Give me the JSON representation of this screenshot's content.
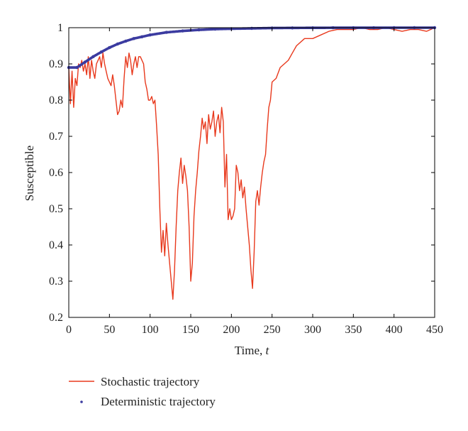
{
  "chart_data": {
    "type": "line",
    "xlabel": "Time, ",
    "xlabel_var": "t",
    "ylabel": "Susceptible",
    "xlim": [
      0,
      450
    ],
    "ylim": [
      0.2,
      1
    ],
    "xticks": [
      0,
      50,
      100,
      150,
      200,
      250,
      300,
      350,
      400,
      450
    ],
    "yticks": [
      0.2,
      0.3,
      0.4,
      0.5,
      0.6,
      0.7,
      0.8,
      0.9,
      1
    ],
    "ytick_labels": [
      "0.2",
      "0.3",
      "0.4",
      "0.5",
      "0.6",
      "0.7",
      "0.8",
      "0.9",
      "1"
    ],
    "grid": false,
    "legend_position": "below",
    "series": [
      {
        "name": "Stochastic trajectory",
        "color": "#e8391d",
        "style": "line",
        "x": [
          0,
          2,
          4,
          6,
          8,
          10,
          12,
          14,
          16,
          18,
          20,
          22,
          24,
          26,
          28,
          30,
          32,
          34,
          36,
          38,
          40,
          42,
          44,
          46,
          48,
          50,
          52,
          54,
          56,
          58,
          60,
          62,
          64,
          66,
          68,
          70,
          72,
          74,
          76,
          78,
          80,
          82,
          84,
          86,
          88,
          90,
          92,
          94,
          96,
          98,
          100,
          102,
          104,
          106,
          108,
          110,
          112,
          114,
          116,
          118,
          120,
          122,
          124,
          126,
          128,
          130,
          132,
          134,
          136,
          138,
          140,
          142,
          144,
          146,
          148,
          150,
          152,
          154,
          156,
          158,
          160,
          162,
          164,
          166,
          168,
          170,
          172,
          174,
          176,
          178,
          180,
          182,
          184,
          186,
          188,
          190,
          192,
          194,
          196,
          198,
          200,
          202,
          204,
          206,
          208,
          210,
          212,
          214,
          216,
          218,
          220,
          222,
          224,
          226,
          228,
          230,
          232,
          234,
          236,
          238,
          240,
          242,
          244,
          246,
          248,
          250,
          255,
          260,
          265,
          270,
          275,
          280,
          290,
          300,
          310,
          320,
          330,
          340,
          350,
          360,
          370,
          380,
          390,
          400,
          410,
          420,
          430,
          440,
          450
        ],
        "values": [
          0.89,
          0.79,
          0.88,
          0.78,
          0.86,
          0.84,
          0.9,
          0.89,
          0.91,
          0.88,
          0.9,
          0.87,
          0.92,
          0.86,
          0.91,
          0.88,
          0.86,
          0.9,
          0.91,
          0.92,
          0.89,
          0.93,
          0.9,
          0.88,
          0.86,
          0.85,
          0.84,
          0.87,
          0.84,
          0.8,
          0.76,
          0.77,
          0.8,
          0.78,
          0.86,
          0.92,
          0.89,
          0.93,
          0.91,
          0.87,
          0.9,
          0.92,
          0.89,
          0.92,
          0.92,
          0.91,
          0.9,
          0.85,
          0.83,
          0.8,
          0.8,
          0.81,
          0.79,
          0.8,
          0.73,
          0.65,
          0.5,
          0.38,
          0.44,
          0.37,
          0.46,
          0.4,
          0.35,
          0.3,
          0.25,
          0.33,
          0.45,
          0.55,
          0.6,
          0.64,
          0.57,
          0.62,
          0.59,
          0.55,
          0.45,
          0.3,
          0.35,
          0.48,
          0.55,
          0.6,
          0.66,
          0.7,
          0.75,
          0.72,
          0.74,
          0.68,
          0.76,
          0.72,
          0.74,
          0.77,
          0.7,
          0.74,
          0.76,
          0.71,
          0.78,
          0.74,
          0.56,
          0.65,
          0.47,
          0.5,
          0.47,
          0.48,
          0.5,
          0.62,
          0.6,
          0.55,
          0.58,
          0.53,
          0.56,
          0.5,
          0.45,
          0.4,
          0.33,
          0.28,
          0.38,
          0.52,
          0.55,
          0.51,
          0.56,
          0.6,
          0.63,
          0.65,
          0.72,
          0.78,
          0.8,
          0.85,
          0.86,
          0.89,
          0.9,
          0.91,
          0.93,
          0.95,
          0.97,
          0.97,
          0.98,
          0.99,
          0.995,
          0.995,
          0.995,
          1.0,
          0.995,
          0.995,
          1.0,
          0.995,
          0.99,
          0.995,
          0.995,
          0.99,
          1.0
        ]
      },
      {
        "name": "Deterministic trajectory",
        "color": "#3b3ba0",
        "style": "dots",
        "x": [
          0,
          10,
          20,
          30,
          40,
          50,
          60,
          70,
          80,
          90,
          100,
          120,
          140,
          160,
          180,
          200,
          225,
          250,
          275,
          300,
          325,
          350,
          375,
          400,
          425,
          450
        ],
        "values": [
          0.89,
          0.89,
          0.905,
          0.92,
          0.933,
          0.945,
          0.955,
          0.963,
          0.97,
          0.975,
          0.98,
          0.987,
          0.991,
          0.994,
          0.996,
          0.997,
          0.998,
          0.999,
          0.9995,
          0.9997,
          0.9998,
          0.9999,
          0.9999,
          1.0,
          1.0,
          1.0
        ]
      }
    ]
  }
}
